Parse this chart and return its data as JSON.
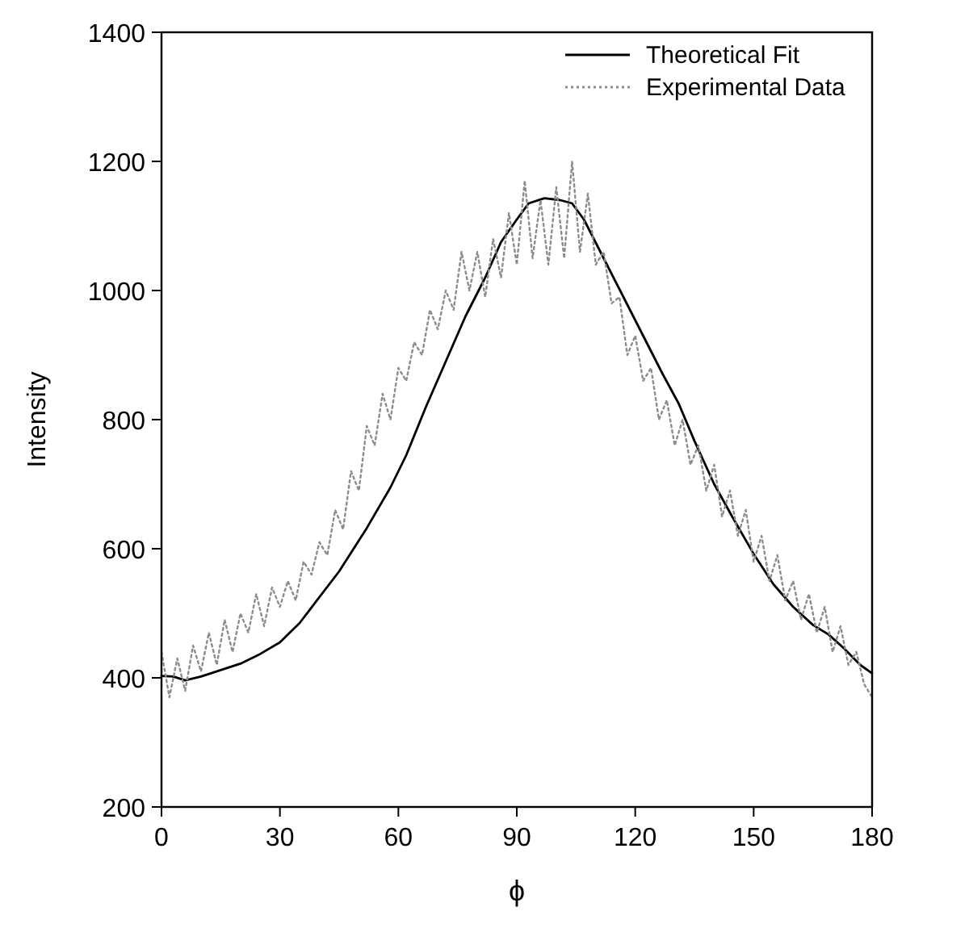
{
  "chart_data": {
    "type": "line",
    "xlabel": "ϕ",
    "ylabel": "Intensity",
    "xlim": [
      0,
      180
    ],
    "ylim": [
      200,
      1400
    ],
    "xticks": [
      0,
      30,
      60,
      90,
      120,
      150,
      180
    ],
    "yticks": [
      200,
      400,
      600,
      800,
      1000,
      1200,
      1400
    ],
    "legend": "top right",
    "grid": false,
    "series": [
      {
        "name": "Theoretical Fit",
        "color": "#000000",
        "line_style": "solid",
        "x": [
          0,
          3,
          6,
          10,
          15,
          20,
          25,
          30,
          35,
          39,
          45,
          52,
          58,
          62,
          67,
          72,
          77,
          82,
          86,
          90,
          93,
          97,
          101,
          104,
          107,
          112,
          117,
          122,
          127,
          131,
          135,
          140,
          145,
          150,
          155,
          160,
          165,
          169,
          173,
          177,
          180
        ],
        "values": [
          403,
          402,
          396,
          402,
          412,
          422,
          437,
          455,
          485,
          517,
          565,
          632,
          695,
          745,
          820,
          890,
          960,
          1020,
          1075,
          1110,
          1135,
          1143,
          1140,
          1135,
          1110,
          1050,
          990,
          930,
          870,
          825,
          767,
          700,
          645,
          592,
          545,
          510,
          482,
          467,
          445,
          420,
          407
        ]
      },
      {
        "name": "Experimental Data",
        "color": "#8c8c8c",
        "line_style": "dotted",
        "x": [
          0,
          2,
          4,
          6,
          8,
          10,
          12,
          14,
          16,
          18,
          20,
          22,
          24,
          26,
          28,
          30,
          32,
          34,
          36,
          38,
          40,
          42,
          44,
          46,
          48,
          50,
          52,
          54,
          56,
          58,
          60,
          62,
          64,
          66,
          68,
          70,
          72,
          74,
          76,
          78,
          80,
          82,
          84,
          86,
          88,
          90,
          92,
          94,
          96,
          98,
          100,
          102,
          104,
          106,
          108,
          110,
          112,
          114,
          116,
          118,
          120,
          122,
          124,
          126,
          128,
          130,
          132,
          134,
          136,
          138,
          140,
          142,
          144,
          146,
          148,
          150,
          152,
          154,
          156,
          158,
          160,
          162,
          164,
          166,
          168,
          170,
          172,
          174,
          176,
          178,
          180
        ],
        "values": [
          440,
          370,
          430,
          380,
          450,
          410,
          470,
          420,
          490,
          440,
          500,
          470,
          530,
          480,
          540,
          510,
          550,
          520,
          580,
          560,
          610,
          590,
          660,
          630,
          720,
          690,
          790,
          760,
          840,
          800,
          880,
          860,
          920,
          900,
          970,
          940,
          1000,
          970,
          1060,
          1000,
          1060,
          990,
          1080,
          1020,
          1120,
          1040,
          1170,
          1050,
          1140,
          1040,
          1160,
          1050,
          1200,
          1060,
          1150,
          1040,
          1060,
          980,
          990,
          900,
          930,
          860,
          880,
          800,
          830,
          760,
          800,
          730,
          760,
          690,
          730,
          650,
          690,
          620,
          660,
          580,
          620,
          550,
          590,
          520,
          550,
          490,
          530,
          470,
          510,
          440,
          480,
          420,
          440,
          390,
          370
        ]
      }
    ]
  }
}
